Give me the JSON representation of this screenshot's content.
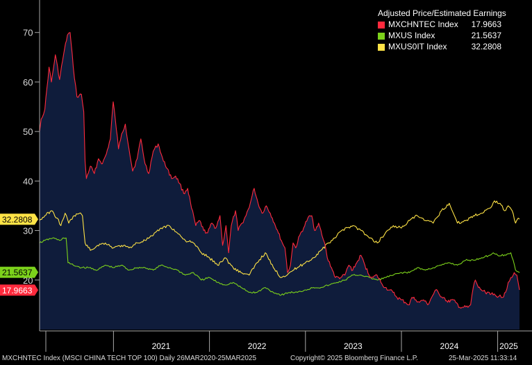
{
  "chart_data": {
    "type": "area",
    "title": "Adjusted Price/Estimated Earnings",
    "date_range": "Daily 26MAR2020-25MAR2025",
    "x_tick_labels": [
      "2021",
      "2022",
      "2023",
      "2024",
      "2025"
    ],
    "y_ticks": [
      30,
      40,
      50,
      60,
      70
    ],
    "ylim": [
      10,
      76
    ],
    "grid": false,
    "legend_position": "top-right",
    "series": [
      {
        "name": "MXCHNTEC Index",
        "last": "17.9663",
        "color": "#ff2a3d",
        "fill": "#0f1c3b",
        "points": [
          [
            "2020-03-26",
            50.0
          ],
          [
            "2020-04-01",
            52.5
          ],
          [
            "2020-04-15",
            54.5
          ],
          [
            "2020-05-01",
            63.0
          ],
          [
            "2020-05-10",
            60.0
          ],
          [
            "2020-05-25",
            65.5
          ],
          [
            "2020-06-10",
            60.5
          ],
          [
            "2020-06-25",
            65.5
          ],
          [
            "2020-07-10",
            69.5
          ],
          [
            "2020-07-20",
            70.0
          ],
          [
            "2020-08-01",
            63.0
          ],
          [
            "2020-08-15",
            57.0
          ],
          [
            "2020-09-01",
            57.5
          ],
          [
            "2020-09-10",
            54.0
          ],
          [
            "2020-09-15",
            44.0
          ],
          [
            "2020-09-20",
            40.5
          ],
          [
            "2020-10-05",
            43.0
          ],
          [
            "2020-10-20",
            41.5
          ],
          [
            "2020-11-05",
            44.5
          ],
          [
            "2020-11-20",
            43.5
          ],
          [
            "2020-12-05",
            45.5
          ],
          [
            "2020-12-20",
            48.5
          ],
          [
            "2020-12-31",
            56.0
          ],
          [
            "2021-01-08",
            52.5
          ],
          [
            "2021-01-20",
            46.5
          ],
          [
            "2021-02-01",
            49.5
          ],
          [
            "2021-02-15",
            51.5
          ],
          [
            "2021-03-01",
            46.5
          ],
          [
            "2021-03-15",
            42.0
          ],
          [
            "2021-04-01",
            44.5
          ],
          [
            "2021-04-15",
            48.5
          ],
          [
            "2021-05-01",
            43.5
          ],
          [
            "2021-05-15",
            41.5
          ],
          [
            "2021-06-01",
            46.0
          ],
          [
            "2021-06-20",
            47.5
          ],
          [
            "2021-07-10",
            44.0
          ],
          [
            "2021-07-25",
            42.5
          ],
          [
            "2021-08-10",
            40.5
          ],
          [
            "2021-08-25",
            41.0
          ],
          [
            "2021-09-10",
            39.5
          ],
          [
            "2021-09-25",
            37.5
          ],
          [
            "2021-10-10",
            38.5
          ],
          [
            "2021-10-25",
            34.5
          ],
          [
            "2021-11-10",
            31.0
          ],
          [
            "2021-11-25",
            32.0
          ],
          [
            "2021-12-10",
            30.0
          ],
          [
            "2021-12-25",
            29.5
          ],
          [
            "2022-01-10",
            31.5
          ],
          [
            "2022-01-25",
            30.5
          ],
          [
            "2022-02-10",
            33.0
          ],
          [
            "2022-02-20",
            27.0
          ],
          [
            "2022-03-05",
            31.0
          ],
          [
            "2022-03-15",
            25.5
          ],
          [
            "2022-03-25",
            31.0
          ],
          [
            "2022-04-10",
            34.0
          ],
          [
            "2022-04-20",
            30.0
          ],
          [
            "2022-05-05",
            31.5
          ],
          [
            "2022-05-20",
            33.0
          ],
          [
            "2022-06-05",
            35.5
          ],
          [
            "2022-06-20",
            38.5
          ],
          [
            "2022-07-05",
            35.5
          ],
          [
            "2022-07-20",
            33.5
          ],
          [
            "2022-08-05",
            35.0
          ],
          [
            "2022-08-20",
            33.5
          ],
          [
            "2022-09-05",
            31.5
          ],
          [
            "2022-09-20",
            29.5
          ],
          [
            "2022-10-05",
            27.5
          ],
          [
            "2022-10-15",
            26.5
          ],
          [
            "2022-10-25",
            21.5
          ],
          [
            "2022-11-05",
            23.0
          ],
          [
            "2022-11-15",
            27.5
          ],
          [
            "2022-11-25",
            26.5
          ],
          [
            "2022-12-10",
            29.0
          ],
          [
            "2022-12-25",
            30.5
          ],
          [
            "2023-01-10",
            32.5
          ],
          [
            "2023-01-25",
            33.0
          ],
          [
            "2023-02-05",
            30.0
          ],
          [
            "2023-02-20",
            31.5
          ],
          [
            "2023-03-05",
            29.0
          ],
          [
            "2023-03-15",
            27.5
          ],
          [
            "2023-03-25",
            24.5
          ],
          [
            "2023-04-10",
            22.5
          ],
          [
            "2023-04-25",
            20.5
          ],
          [
            "2023-05-15",
            20.5
          ],
          [
            "2023-05-31",
            21.0
          ],
          [
            "2023-06-15",
            23.0
          ],
          [
            "2023-06-30",
            22.0
          ],
          [
            "2023-07-15",
            23.5
          ],
          [
            "2023-07-31",
            25.0
          ],
          [
            "2023-08-15",
            23.0
          ],
          [
            "2023-08-31",
            21.0
          ],
          [
            "2023-09-15",
            20.5
          ],
          [
            "2023-09-30",
            21.0
          ],
          [
            "2023-10-15",
            19.5
          ],
          [
            "2023-10-31",
            18.5
          ],
          [
            "2023-11-15",
            18.0
          ],
          [
            "2023-11-30",
            17.5
          ],
          [
            "2023-12-15",
            16.5
          ],
          [
            "2023-12-31",
            16.0
          ],
          [
            "2024-01-15",
            15.5
          ],
          [
            "2024-01-31",
            15.0
          ],
          [
            "2024-02-10",
            16.5
          ],
          [
            "2024-02-25",
            16.0
          ],
          [
            "2024-03-10",
            15.5
          ],
          [
            "2024-03-25",
            16.0
          ],
          [
            "2024-04-10",
            15.0
          ],
          [
            "2024-04-25",
            16.5
          ],
          [
            "2024-05-10",
            18.0
          ],
          [
            "2024-05-25",
            17.0
          ],
          [
            "2024-06-10",
            16.5
          ],
          [
            "2024-06-25",
            15.5
          ],
          [
            "2024-07-10",
            16.0
          ],
          [
            "2024-07-25",
            15.5
          ],
          [
            "2024-08-10",
            14.5
          ],
          [
            "2024-08-25",
            14.5
          ],
          [
            "2024-09-10",
            14.5
          ],
          [
            "2024-09-20",
            15.0
          ],
          [
            "2024-09-30",
            18.5
          ],
          [
            "2024-10-08",
            20.0
          ],
          [
            "2024-10-20",
            18.5
          ],
          [
            "2024-10-31",
            18.0
          ],
          [
            "2024-11-15",
            17.5
          ],
          [
            "2024-11-30",
            17.5
          ],
          [
            "2024-12-15",
            17.0
          ],
          [
            "2024-12-31",
            16.5
          ],
          [
            "2025-01-10",
            17.0
          ],
          [
            "2025-01-20",
            16.5
          ],
          [
            "2025-01-31",
            17.5
          ],
          [
            "2025-02-10",
            19.5
          ],
          [
            "2025-02-20",
            20.5
          ],
          [
            "2025-03-05",
            21.5
          ],
          [
            "2025-03-15",
            21.0
          ],
          [
            "2025-03-20",
            19.5
          ],
          [
            "2025-03-25",
            18.0
          ]
        ]
      },
      {
        "name": "MXUS Index",
        "last": "21.5637",
        "color": "#7cd21b",
        "points": [
          [
            "2020-03-26",
            27.5
          ],
          [
            "2020-04-15",
            28.0
          ],
          [
            "2020-05-15",
            28.5
          ],
          [
            "2020-06-10",
            28.0
          ],
          [
            "2020-06-25",
            28.5
          ],
          [
            "2020-07-05",
            28.5
          ],
          [
            "2020-07-12",
            23.5
          ],
          [
            "2020-08-01",
            23.0
          ],
          [
            "2020-09-01",
            22.5
          ],
          [
            "2020-10-01",
            22.5
          ],
          [
            "2020-11-01",
            22.0
          ],
          [
            "2020-12-01",
            23.0
          ],
          [
            "2021-01-01",
            22.5
          ],
          [
            "2021-02-01",
            23.0
          ],
          [
            "2021-03-01",
            22.0
          ],
          [
            "2021-04-01",
            22.5
          ],
          [
            "2021-05-01",
            22.5
          ],
          [
            "2021-06-01",
            22.0
          ],
          [
            "2021-07-01",
            23.0
          ],
          [
            "2021-08-01",
            22.5
          ],
          [
            "2021-09-01",
            22.0
          ],
          [
            "2021-10-01",
            21.0
          ],
          [
            "2021-11-01",
            21.5
          ],
          [
            "2021-12-01",
            20.0
          ],
          [
            "2022-01-01",
            20.5
          ],
          [
            "2022-02-01",
            19.5
          ],
          [
            "2022-03-01",
            19.0
          ],
          [
            "2022-04-01",
            19.5
          ],
          [
            "2022-05-01",
            18.5
          ],
          [
            "2022-06-01",
            17.5
          ],
          [
            "2022-07-01",
            17.5
          ],
          [
            "2022-08-01",
            18.5
          ],
          [
            "2022-09-01",
            17.5
          ],
          [
            "2022-10-01",
            17.0
          ],
          [
            "2022-11-01",
            17.5
          ],
          [
            "2022-12-01",
            17.5
          ],
          [
            "2023-01-01",
            18.0
          ],
          [
            "2023-02-01",
            18.5
          ],
          [
            "2023-03-01",
            18.5
          ],
          [
            "2023-04-01",
            19.0
          ],
          [
            "2023-05-01",
            19.5
          ],
          [
            "2023-06-01",
            20.0
          ],
          [
            "2023-07-01",
            21.0
          ],
          [
            "2023-08-01",
            21.0
          ],
          [
            "2023-09-01",
            20.5
          ],
          [
            "2023-10-01",
            20.0
          ],
          [
            "2023-11-01",
            20.5
          ],
          [
            "2023-12-01",
            21.0
          ],
          [
            "2024-01-01",
            21.5
          ],
          [
            "2024-02-01",
            21.5
          ],
          [
            "2024-03-01",
            22.5
          ],
          [
            "2024-04-01",
            22.0
          ],
          [
            "2024-05-01",
            22.5
          ],
          [
            "2024-06-01",
            23.0
          ],
          [
            "2024-07-01",
            23.5
          ],
          [
            "2024-08-01",
            23.0
          ],
          [
            "2024-09-01",
            24.0
          ],
          [
            "2024-10-01",
            24.0
          ],
          [
            "2024-11-01",
            24.5
          ],
          [
            "2024-12-01",
            25.0
          ],
          [
            "2024-12-15",
            25.5
          ],
          [
            "2025-01-01",
            25.0
          ],
          [
            "2025-02-01",
            25.0
          ],
          [
            "2025-02-20",
            25.5
          ],
          [
            "2025-03-01",
            24.0
          ],
          [
            "2025-03-10",
            22.0
          ],
          [
            "2025-03-25",
            21.5
          ]
        ]
      },
      {
        "name": "MXUS0IT Index",
        "last": "32.2808",
        "color": "#ffe346",
        "points": [
          [
            "2020-03-26",
            32.0
          ],
          [
            "2020-04-15",
            33.0
          ],
          [
            "2020-05-10",
            34.0
          ],
          [
            "2020-06-01",
            32.5
          ],
          [
            "2020-06-15",
            31.0
          ],
          [
            "2020-07-01",
            33.5
          ],
          [
            "2020-07-15",
            31.5
          ],
          [
            "2020-08-05",
            33.0
          ],
          [
            "2020-08-25",
            33.5
          ],
          [
            "2020-09-05",
            33.0
          ],
          [
            "2020-09-15",
            27.5
          ],
          [
            "2020-10-05",
            26.0
          ],
          [
            "2020-11-01",
            27.0
          ],
          [
            "2020-12-01",
            27.5
          ],
          [
            "2021-01-01",
            26.5
          ],
          [
            "2021-02-01",
            27.0
          ],
          [
            "2021-03-01",
            26.5
          ],
          [
            "2021-04-01",
            27.5
          ],
          [
            "2021-05-01",
            28.0
          ],
          [
            "2021-06-01",
            29.0
          ],
          [
            "2021-07-01",
            30.5
          ],
          [
            "2021-08-01",
            31.0
          ],
          [
            "2021-09-01",
            29.5
          ],
          [
            "2021-10-01",
            28.0
          ],
          [
            "2021-11-01",
            27.5
          ],
          [
            "2021-12-01",
            25.5
          ],
          [
            "2022-01-01",
            24.5
          ],
          [
            "2022-02-01",
            23.0
          ],
          [
            "2022-03-01",
            24.5
          ],
          [
            "2022-04-01",
            22.5
          ],
          [
            "2022-05-01",
            21.5
          ],
          [
            "2022-06-01",
            21.0
          ],
          [
            "2022-07-01",
            23.5
          ],
          [
            "2022-08-01",
            25.5
          ],
          [
            "2022-09-01",
            22.5
          ],
          [
            "2022-10-01",
            20.5
          ],
          [
            "2022-11-01",
            21.5
          ],
          [
            "2022-12-01",
            22.5
          ],
          [
            "2023-01-01",
            23.5
          ],
          [
            "2023-02-01",
            24.5
          ],
          [
            "2023-03-01",
            26.0
          ],
          [
            "2023-04-01",
            27.5
          ],
          [
            "2023-05-01",
            29.0
          ],
          [
            "2023-06-01",
            30.5
          ],
          [
            "2023-07-01",
            31.0
          ],
          [
            "2023-08-01",
            30.0
          ],
          [
            "2023-09-01",
            28.5
          ],
          [
            "2023-10-01",
            27.5
          ],
          [
            "2023-11-01",
            29.5
          ],
          [
            "2023-12-01",
            31.0
          ],
          [
            "2024-01-01",
            30.5
          ],
          [
            "2024-02-01",
            32.0
          ],
          [
            "2024-03-01",
            33.0
          ],
          [
            "2024-04-01",
            32.0
          ],
          [
            "2024-05-01",
            31.5
          ],
          [
            "2024-06-01",
            34.0
          ],
          [
            "2024-07-01",
            35.5
          ],
          [
            "2024-08-01",
            31.5
          ],
          [
            "2024-09-01",
            32.0
          ],
          [
            "2024-10-01",
            33.0
          ],
          [
            "2024-11-01",
            33.5
          ],
          [
            "2024-12-01",
            34.5
          ],
          [
            "2024-12-20",
            36.0
          ],
          [
            "2025-01-10",
            35.5
          ],
          [
            "2025-01-27",
            34.0
          ],
          [
            "2025-02-10",
            35.0
          ],
          [
            "2025-02-25",
            34.0
          ],
          [
            "2025-03-10",
            31.5
          ],
          [
            "2025-03-20",
            32.5
          ],
          [
            "2025-03-25",
            32.3
          ]
        ]
      }
    ]
  },
  "footer": {
    "left": "MXCHNTEC Index (MSCI CHINA TECH TOP 100)  Daily 26MAR2020-25MAR2025",
    "copyright": "Copyright© 2025 Bloomberg Finance L.P.",
    "timestamp": "25-Mar-2025 11:33:14"
  }
}
